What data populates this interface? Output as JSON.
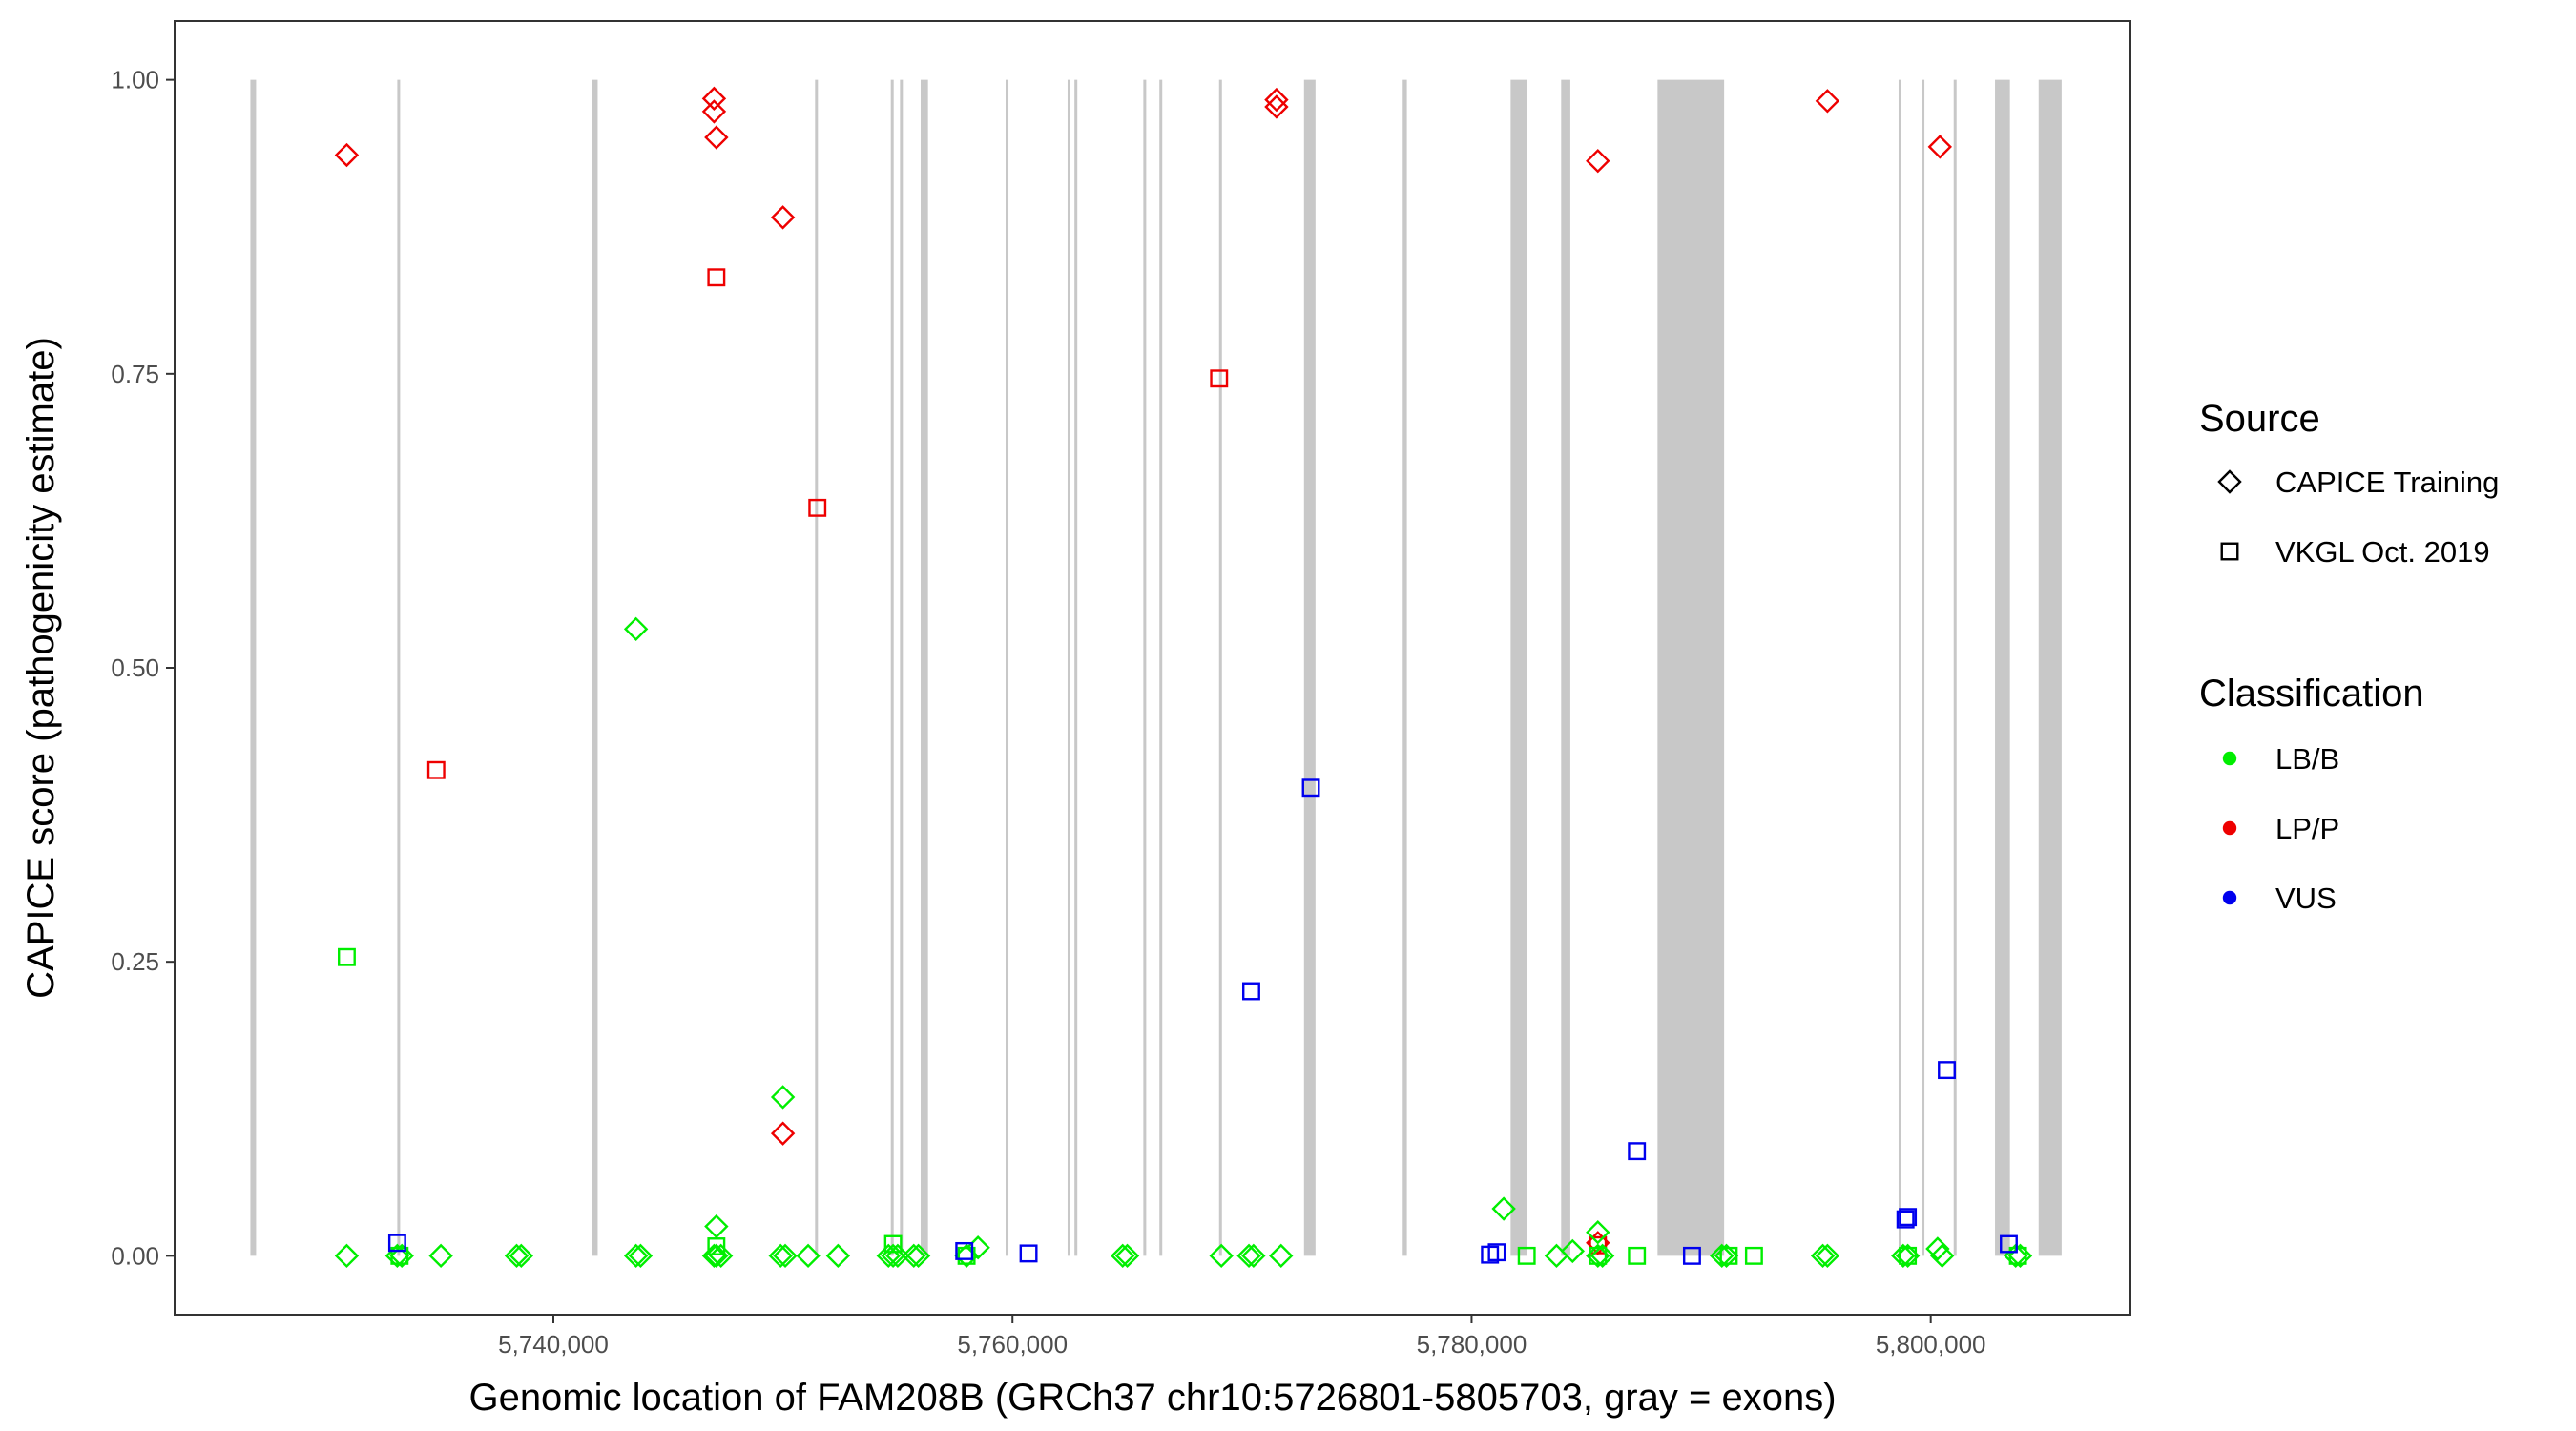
{
  "chart_data": {
    "type": "scatter",
    "xlabel": "Genomic location of FAM208B (GRCh37 chr10:5726801-5805703, gray = exons)",
    "ylabel": "CAPICE score (pathogenicity estimate)",
    "xlim": [
      5723500,
      5808700
    ],
    "ylim": [
      -0.05,
      1.05
    ],
    "x_ticks": [
      5740000,
      5760000,
      5780000,
      5800000
    ],
    "x_tick_labels": [
      "5,740,000",
      "5,760,000",
      "5,780,000",
      "5,800,000"
    ],
    "y_ticks": [
      0,
      0.25,
      0.5,
      0.75,
      1
    ],
    "y_tick_labels": [
      "0.00",
      "0.25",
      "0.50",
      "0.75",
      "1.00"
    ],
    "grid": false,
    "exon_color": "#c8c8c8",
    "exons": [
      [
        5726801,
        5727050
      ],
      [
        5733200,
        5733280
      ],
      [
        5741700,
        5741930
      ],
      [
        5751400,
        5751480
      ],
      [
        5754700,
        5754780
      ],
      [
        5755100,
        5755180
      ],
      [
        5756000,
        5756320
      ],
      [
        5759700,
        5759780
      ],
      [
        5762400,
        5762500
      ],
      [
        5762700,
        5762780
      ],
      [
        5765700,
        5765780
      ],
      [
        5766400,
        5766480
      ],
      [
        5769000,
        5769080
      ],
      [
        5772700,
        5773200
      ],
      [
        5777000,
        5777180
      ],
      [
        5781700,
        5782400
      ],
      [
        5783900,
        5784300
      ],
      [
        5788100,
        5791000
      ],
      [
        5798600,
        5798700
      ],
      [
        5799600,
        5799700
      ],
      [
        5801000,
        5801080
      ],
      [
        5802800,
        5803450
      ],
      [
        5804700,
        5805703
      ]
    ],
    "legend": {
      "position": "right",
      "source_title": "Source",
      "source_items": [
        {
          "label": "CAPICE Training",
          "shape": "diamond"
        },
        {
          "label": "VKGL Oct. 2019",
          "shape": "square"
        }
      ],
      "class_title": "Classification",
      "class_items": [
        {
          "label": "LB/B",
          "color": "#00ee00"
        },
        {
          "label": "LP/P",
          "color": "#ee0000"
        },
        {
          "label": "VUS",
          "color": "#0000ee"
        }
      ]
    },
    "series": [
      {
        "shape": "diamond",
        "color": "#ee0000",
        "x": [
          5731000,
          5747000,
          5747000,
          5747100,
          5750000,
          5750000,
          5771500,
          5771500,
          5785500,
          5785500,
          5795500,
          5800400
        ],
        "y": [
          0.936,
          0.984,
          0.973,
          0.951,
          0.883,
          0.104,
          0.983,
          0.977,
          0.931,
          0.011,
          0.982,
          0.943
        ]
      },
      {
        "shape": "square",
        "color": "#ee0000",
        "x": [
          5747100,
          5734900,
          5751500,
          5769000,
          5785500
        ],
        "y": [
          0.832,
          0.413,
          0.636,
          0.746,
          0.009
        ]
      },
      {
        "shape": "diamond",
        "color": "#00ee00",
        "x": [
          5731000,
          5733200,
          5733400,
          5735100,
          5738400,
          5738600,
          5743600,
          5743800,
          5747000,
          5747100,
          5747300,
          5749900,
          5750100,
          5751100,
          5752400,
          5754600,
          5754800,
          5755000,
          5755700,
          5755900,
          5758000,
          5758500,
          5764800,
          5765000,
          5769100,
          5770300,
          5770500,
          5771700,
          5781400,
          5783700,
          5784400,
          5785500,
          5785700,
          5790900,
          5791100,
          5795300,
          5795500,
          5798800,
          5799000,
          5800300,
          5800500,
          5803700,
          5803900,
          5750000,
          5747100,
          5785500
        ],
        "y": [
          0,
          0,
          0,
          0,
          0,
          0,
          0,
          0,
          0,
          0,
          0,
          0,
          0,
          0,
          0,
          0,
          0,
          0,
          0,
          0,
          0,
          0.007,
          0,
          0,
          0,
          0,
          0,
          0,
          0.04,
          0,
          0.004,
          0,
          0,
          0,
          0,
          0,
          0,
          0,
          0,
          0.006,
          0,
          0,
          0,
          0.135,
          0.025,
          0.02
        ]
      },
      {
        "shape": "diamond",
        "color": "#00ee00",
        "x": [
          5743600
        ],
        "y": [
          0.533
        ]
      },
      {
        "shape": "square",
        "color": "#00ee00",
        "x": [
          5731000,
          5733300,
          5747100,
          5754800,
          5758000,
          5782400,
          5785500,
          5787200,
          5791200,
          5792300,
          5799000,
          5803800
        ],
        "y": [
          0.254,
          0,
          0.008,
          0.01,
          0,
          0,
          0,
          0,
          0,
          0,
          0,
          0
        ]
      },
      {
        "shape": "square",
        "color": "#0000ee",
        "x": [
          5733200,
          5757900,
          5760700,
          5770400,
          5773000,
          5780800,
          5781100,
          5787200,
          5789600,
          5798900,
          5799000,
          5800700,
          5803400
        ],
        "y": [
          0.011,
          0.004,
          0.002,
          0.225,
          0.398,
          0.001,
          0.003,
          0.089,
          0,
          0.031,
          0.033,
          0.158,
          0.01
        ]
      }
    ]
  }
}
